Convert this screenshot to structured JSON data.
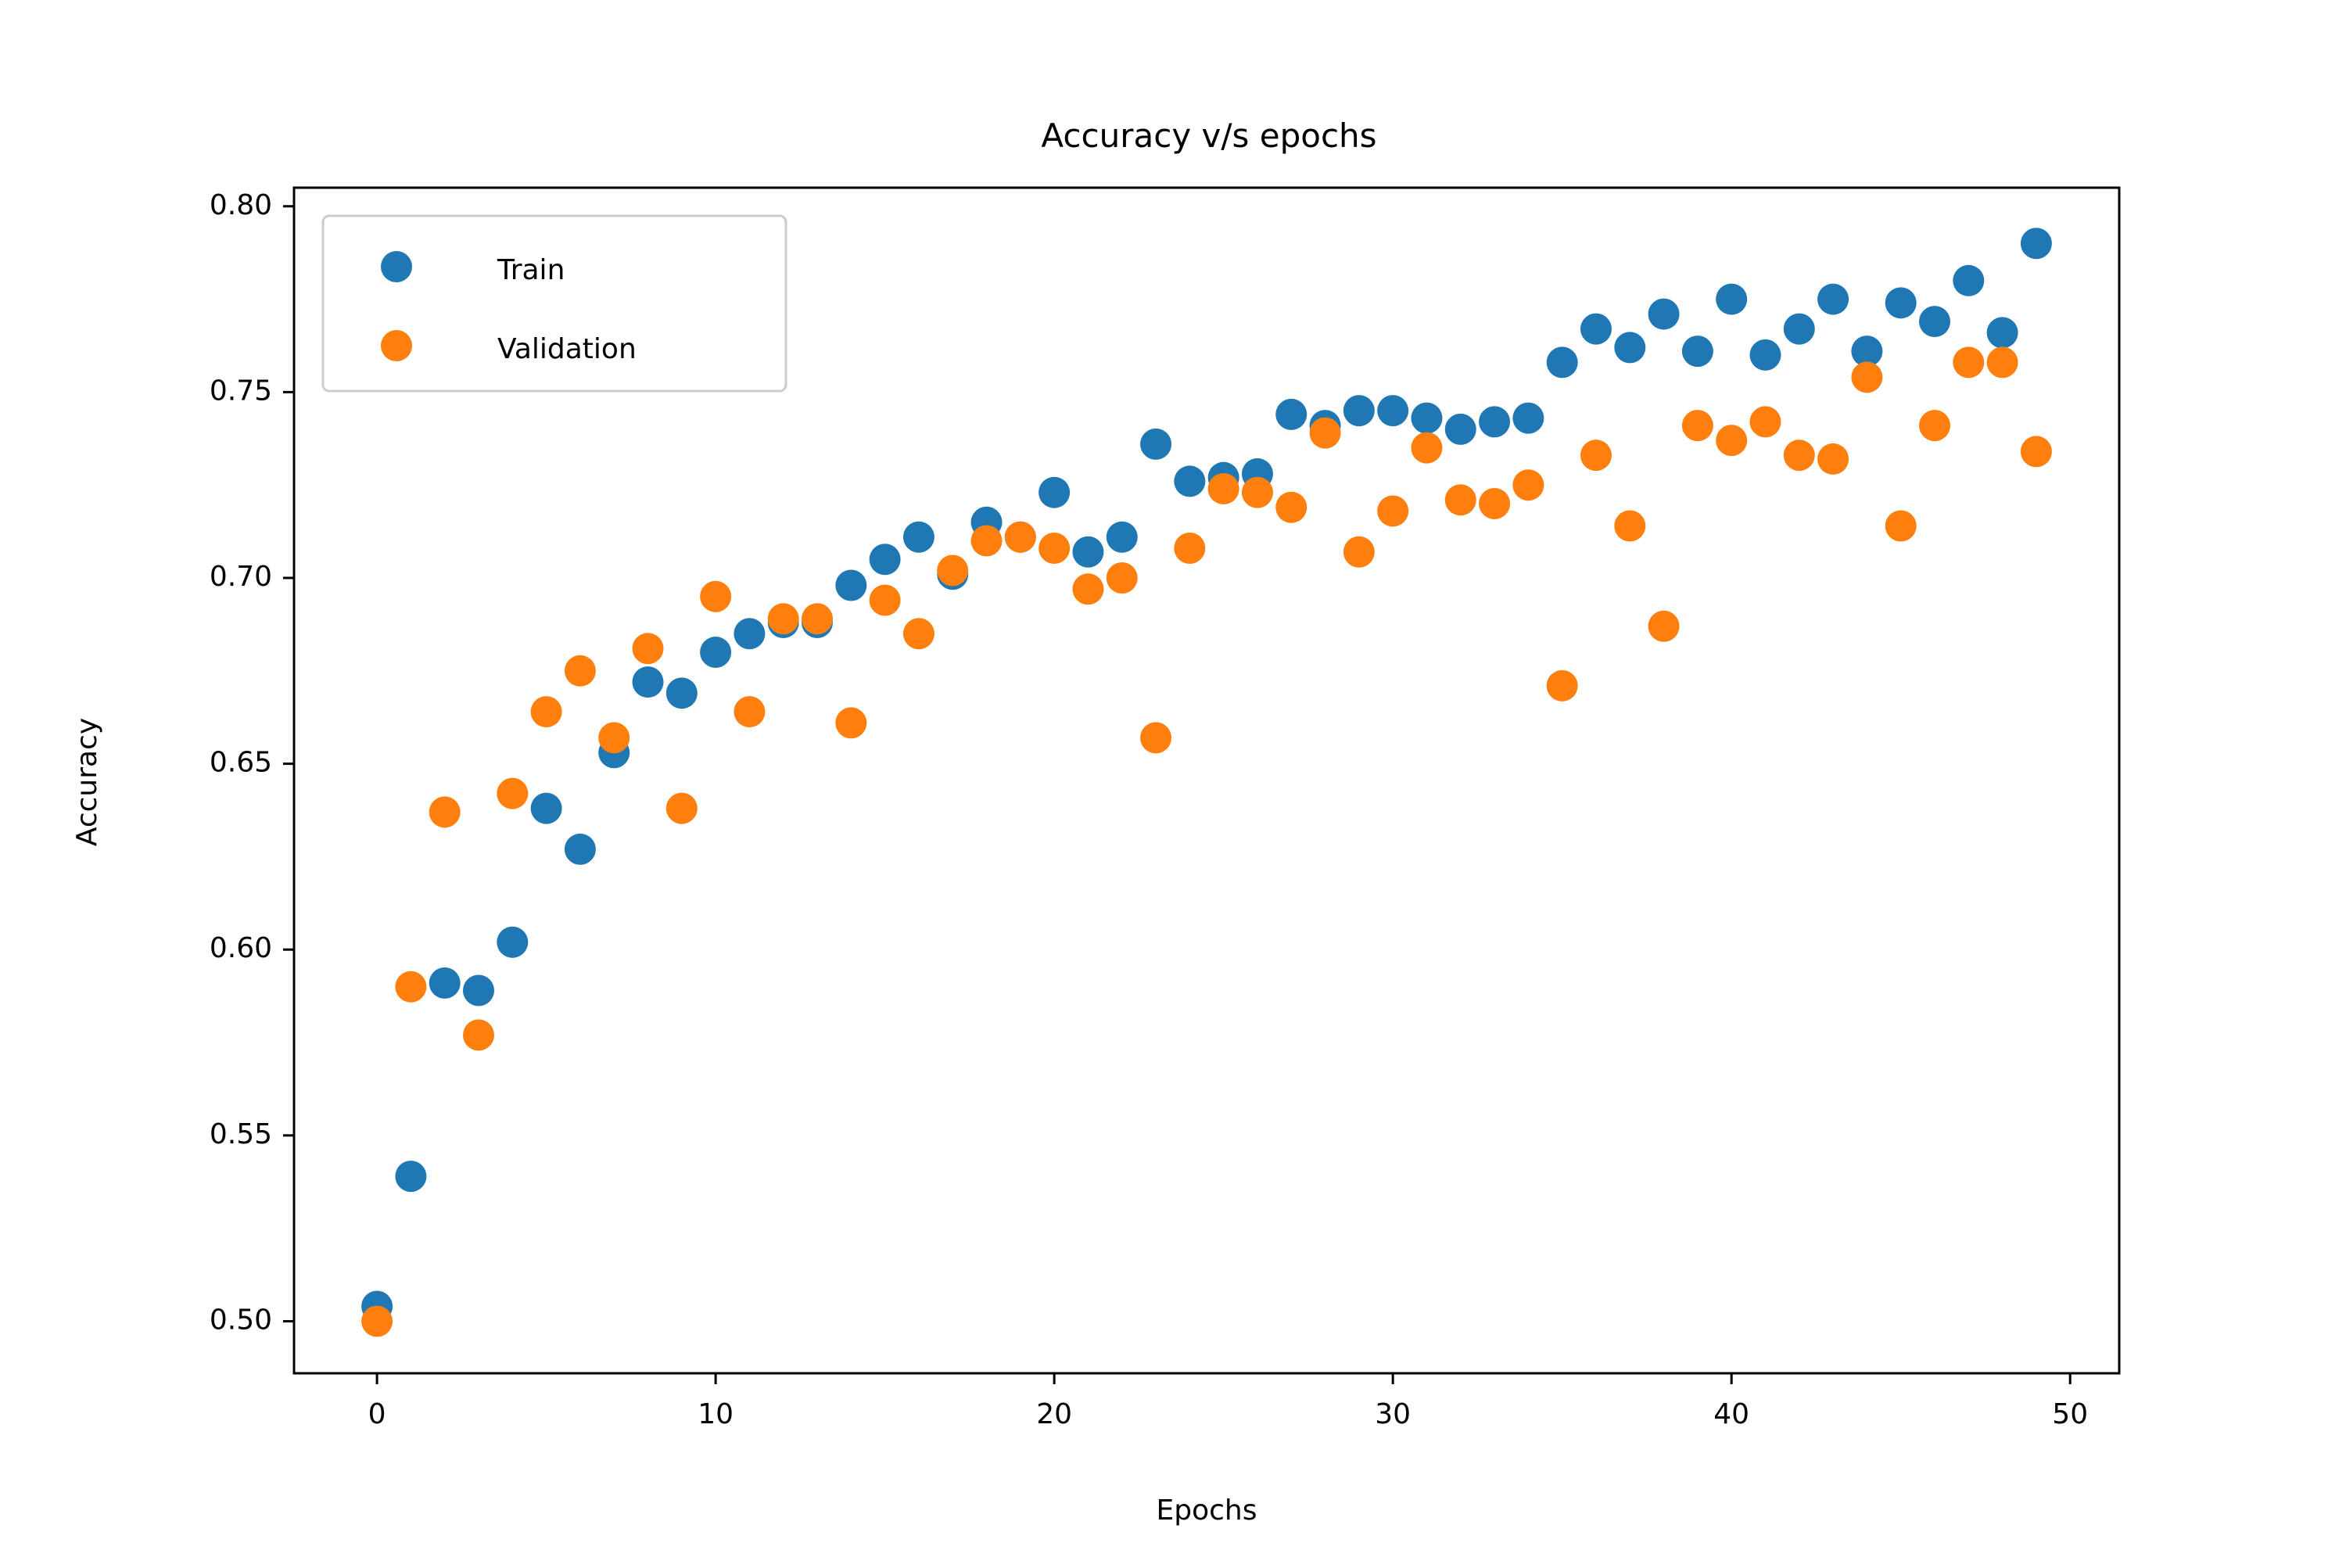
{
  "chart_data": {
    "type": "scatter",
    "title": "Accuracy v/s epochs",
    "xlabel": "Epochs",
    "ylabel": "Accuracy",
    "xlim": [
      -2.45,
      51.45
    ],
    "ylim": [
      0.486,
      0.805
    ],
    "xticks": [
      0,
      10,
      20,
      30,
      40,
      50
    ],
    "xtick_labels": [
      "0",
      "10",
      "20",
      "30",
      "40",
      "50"
    ],
    "yticks": [
      0.5,
      0.55,
      0.6,
      0.65,
      0.7,
      0.75,
      0.8
    ],
    "ytick_labels": [
      "0.50",
      "0.55",
      "0.60",
      "0.65",
      "0.70",
      "0.75",
      "0.80"
    ],
    "grid": false,
    "legend_position": "upper-left",
    "x": [
      0,
      1,
      2,
      3,
      4,
      5,
      6,
      7,
      8,
      9,
      10,
      11,
      12,
      13,
      14,
      15,
      16,
      17,
      18,
      19,
      20,
      21,
      22,
      23,
      24,
      25,
      26,
      27,
      28,
      29,
      30,
      31,
      32,
      33,
      34,
      35,
      36,
      37,
      38,
      39,
      40,
      41,
      42,
      43,
      44,
      45,
      46,
      47,
      48,
      49
    ],
    "series": [
      {
        "name": "Train",
        "color": "#1f77b4",
        "values": [
          0.504,
          0.539,
          0.591,
          0.589,
          0.602,
          0.638,
          0.627,
          0.653,
          0.672,
          0.669,
          0.68,
          0.685,
          0.688,
          0.688,
          0.698,
          0.705,
          0.711,
          0.701,
          0.715,
          0.711,
          0.723,
          0.707,
          0.711,
          0.736,
          0.726,
          0.727,
          0.728,
          0.744,
          0.741,
          0.745,
          0.745,
          0.743,
          0.74,
          0.742,
          0.743,
          0.758,
          0.767,
          0.762,
          0.771,
          0.761,
          0.775,
          0.76,
          0.767,
          0.775,
          0.761,
          0.774,
          0.769,
          0.78,
          0.766,
          0.79
        ]
      },
      {
        "name": "Validation",
        "color": "#ff7f0e",
        "values": [
          0.5,
          0.59,
          0.637,
          0.577,
          0.642,
          0.664,
          0.675,
          0.657,
          0.681,
          0.638,
          0.695,
          0.664,
          0.689,
          0.689,
          0.661,
          0.694,
          0.685,
          0.702,
          0.71,
          0.711,
          0.708,
          0.697,
          0.7,
          0.657,
          0.708,
          0.724,
          0.723,
          0.719,
          0.739,
          0.707,
          0.718,
          0.735,
          0.721,
          0.72,
          0.725,
          0.671,
          0.733,
          0.714,
          0.687,
          0.741,
          0.737,
          0.742,
          0.733,
          0.732,
          0.754,
          0.714,
          0.741,
          0.758,
          0.758,
          0.734
        ]
      }
    ]
  }
}
